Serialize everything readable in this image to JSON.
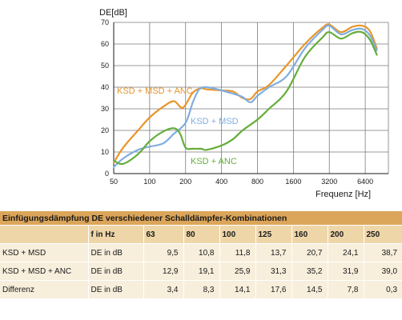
{
  "chart_data": {
    "type": "line",
    "ylabel": "DE[dB]",
    "xlabel": "Frequenz [Hz]",
    "x_scale": "log2",
    "x_ticks": [
      50,
      100,
      200,
      400,
      800,
      1600,
      3200,
      6400
    ],
    "xlim": [
      50,
      10000
    ],
    "y_ticks": [
      0,
      10,
      20,
      30,
      40,
      50,
      60,
      70
    ],
    "ylim": [
      0,
      70
    ],
    "grid": true,
    "series": [
      {
        "name": "KSD + MSD + ANC",
        "color": "#e8952a",
        "x": [
          50,
          60,
          80,
          100,
          130,
          160,
          190,
          230,
          270,
          300,
          400,
          500,
          600,
          700,
          800,
          1000,
          1400,
          2000,
          2800,
          3200,
          4000,
          5000,
          6000,
          7000,
          8000
        ],
        "y": [
          5,
          12,
          20,
          26,
          31,
          33.5,
          30.5,
          37.5,
          39.5,
          39,
          38.5,
          38,
          35,
          34.5,
          38,
          41,
          50,
          60,
          67.5,
          69,
          65.5,
          68,
          68.5,
          66,
          58
        ]
      },
      {
        "name": "KSD + MSD",
        "color": "#7faee0",
        "x": [
          50,
          60,
          80,
          100,
          130,
          160,
          200,
          230,
          260,
          300,
          400,
          500,
          600,
          700,
          800,
          1000,
          1400,
          2000,
          2800,
          3200,
          4000,
          5000,
          6000,
          7000,
          8000
        ],
        "y": [
          3,
          7,
          11,
          12.5,
          14,
          18.5,
          23.5,
          33,
          39,
          40,
          38.5,
          37,
          35.5,
          33,
          36,
          40,
          45,
          58,
          66.5,
          68.5,
          64.5,
          66.5,
          67,
          64,
          57
        ]
      },
      {
        "name": "KSD + ANC",
        "color": "#65ad3b",
        "x": [
          50,
          60,
          80,
          100,
          130,
          160,
          180,
          200,
          230,
          270,
          300,
          400,
          500,
          600,
          800,
          1000,
          1400,
          2000,
          2800,
          3200,
          4000,
          5000,
          6000,
          7000,
          8000
        ],
        "y": [
          6,
          4.5,
          9,
          15,
          19.5,
          21,
          18.5,
          12,
          11.5,
          11.5,
          11,
          13,
          16,
          20,
          25,
          30,
          38,
          54,
          63,
          65.5,
          62.5,
          65,
          65.5,
          62,
          55
        ]
      }
    ]
  },
  "table": {
    "title": "Einfügungsdämpfung DE verschiedener Schalldämpfer-Kombinationen",
    "header": [
      "",
      "f in Hz",
      "63",
      "80",
      "100",
      "125",
      "160",
      "200",
      "250"
    ],
    "rows": [
      [
        "KSD + MSD",
        "DE in dB",
        "9,5",
        "10,8",
        "11,8",
        "13,7",
        "20,7",
        "24,1",
        "38,7"
      ],
      [
        "KSD + MSD + ANC",
        "DE in dB",
        "12,9",
        "19,1",
        "25,9",
        "31,3",
        "35,2",
        "31,9",
        "39,0"
      ],
      [
        "Differenz",
        "DE in dB",
        "3,4",
        "8,3",
        "14,1",
        "17,6",
        "14,5",
        "7,8",
        "0,3"
      ]
    ]
  },
  "colors": {
    "table_title_bg": "#dba55a",
    "table_header_bg": "#efd6a8",
    "table_row_bg": "#f7eedc",
    "grid": "#7a7a7a"
  }
}
